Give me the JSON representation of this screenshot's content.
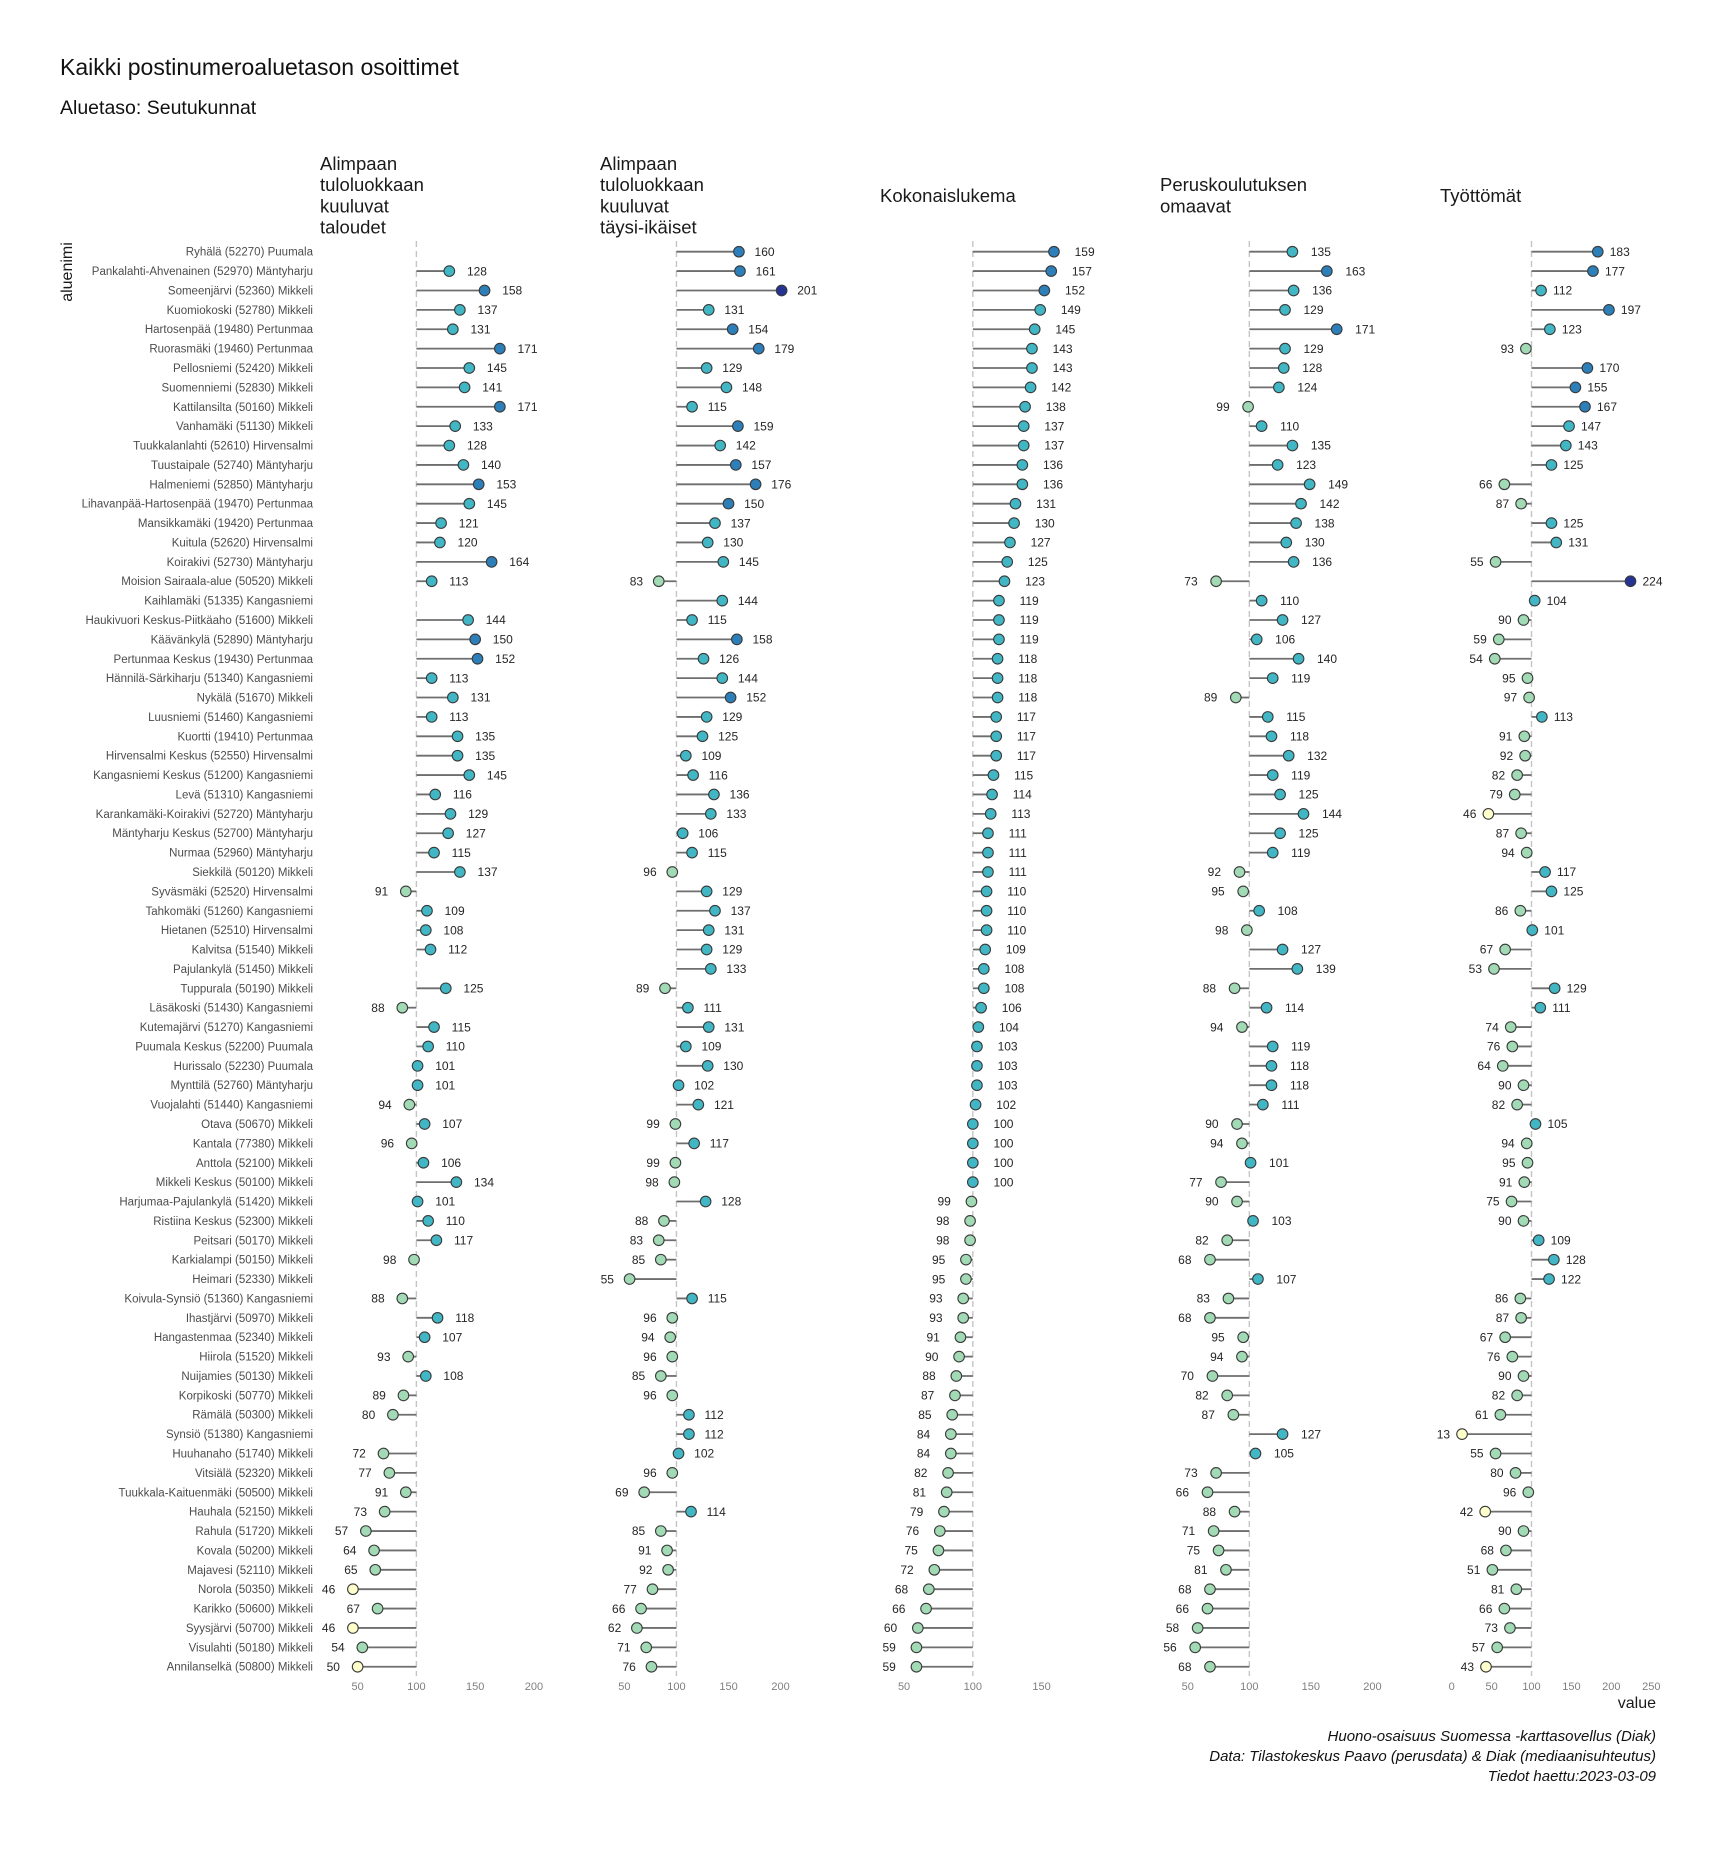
{
  "chart_data": {
    "type": "scatter",
    "title": "Kaikki postinumeroaluetason osoittimet",
    "subtitle": "Aluetaso: Seutukunnat",
    "xlabel": "value",
    "ylabel": "aluenimi",
    "reference_value": 100,
    "caption": [
      "Huono-osaisuus Suomessa -karttasovellus (Diak)",
      "Data: Tilastokeskus Paavo (perusdata) & Diak (mediaanisuhteutus)",
      "Tiedot haettu:2023-03-09"
    ],
    "color_scale": {
      "breaks": [
        50,
        100,
        150,
        200
      ],
      "colors": [
        "#ffffcc",
        "#a1dab4",
        "#41b6c4",
        "#2c7fb8",
        "#253494"
      ]
    },
    "categories": [
      "Ryhälä (52270) Puumala",
      "Pankalahti-Ahvenainen (52970) Mäntyharju",
      "Someenjärvi (52360) Mikkeli",
      "Kuomiokoski (52780) Mikkeli",
      "Hartosenpää (19480) Pertunmaa",
      "Ruorasmäki (19460) Pertunmaa",
      "Pellosniemi (52420) Mikkeli",
      "Suomenniemi (52830) Mikkeli",
      "Kattilansilta (50160) Mikkeli",
      "Vanhamäki (51130) Mikkeli",
      "Tuukkalanlahti (52610) Hirvensalmi",
      "Tuustaipale (52740) Mäntyharju",
      "Halmeniemi (52850) Mäntyharju",
      "Lihavanpää-Hartosenpää (19470) Pertunmaa",
      "Mansikkamäki (19420) Pertunmaa",
      "Kuitula (52620) Hirvensalmi",
      "Koirakivi (52730) Mäntyharju",
      "Moision Sairaala-alue (50520) Mikkeli",
      "Kaihlamäki (51335) Kangasniemi",
      "Haukivuori Keskus-Piitkäaho (51600) Mikkeli",
      "Käävänkylä (52890) Mäntyharju",
      "Pertunmaa Keskus (19430) Pertunmaa",
      "Hännilä-Särkiharju (51340) Kangasniemi",
      "Nykälä (51670) Mikkeli",
      "Luusniemi (51460) Kangasniemi",
      "Kuortti (19410) Pertunmaa",
      "Hirvensalmi Keskus (52550) Hirvensalmi",
      "Kangasniemi Keskus (51200) Kangasniemi",
      "Levä (51310) Kangasniemi",
      "Karankamäki-Koirakivi (52720) Mäntyharju",
      "Mäntyharju Keskus (52700) Mäntyharju",
      "Nurmaa (52960) Mäntyharju",
      "Siekkilä (50120) Mikkeli",
      "Syväsmäki (52520) Hirvensalmi",
      "Tahkomäki (51260) Kangasniemi",
      "Hietanen (52510) Hirvensalmi",
      "Kalvitsa (51540) Mikkeli",
      "Pajulankylä (51450) Mikkeli",
      "Tuppurala (50190) Mikkeli",
      "Läsäkoski (51430) Kangasniemi",
      "Kutemajärvi (51270) Kangasniemi",
      "Puumala Keskus (52200) Puumala",
      "Hurissalo (52230) Puumala",
      "Mynttilä (52760) Mäntyharju",
      "Vuojalahti (51440) Kangasniemi",
      "Otava (50670) Mikkeli",
      "Kantala (77380) Mikkeli",
      "Anttola (52100) Mikkeli",
      "Mikkeli Keskus (50100) Mikkeli",
      "Harjumaa-Pajulankylä (51420) Mikkeli",
      "Ristiina Keskus (52300) Mikkeli",
      "Peitsari (50170) Mikkeli",
      "Karkialampi (50150) Mikkeli",
      "Heimari (52330) Mikkeli",
      "Koivula-Synsiö (51360) Kangasniemi",
      "Ihastjärvi (50970) Mikkeli",
      "Hangastenmaa (52340) Mikkeli",
      "Hiirola (51520) Mikkeli",
      "Nuijamies (50130) Mikkeli",
      "Korpikoski (50770) Mikkeli",
      "Rämälä (50300) Mikkeli",
      "Synsiö (51380) Kangasniemi",
      "Huuhanaho (51740) Mikkeli",
      "Vitsiälä (52320) Mikkeli",
      "Tuukkala-Kaituenmäki (50500) Mikkeli",
      "Hauhala (52150) Mikkeli",
      "Rahula (51720) Mikkeli",
      "Kovala (50200) Mikkeli",
      "Majavesi (52110) Mikkeli",
      "Norola (50350) Mikkeli",
      "Karikko (50600) Mikkeli",
      "Syysjärvi (50700) Mikkeli",
      "Visulahti (50180) Mikkeli",
      "Annilanselkä (50800) Mikkeli"
    ],
    "panels": [
      {
        "title_lines": [
          "Alimpaan",
          "tuloluokkaan",
          "kuuluvat",
          "taloudet"
        ],
        "xlim": [
          18,
          206
        ],
        "ticks": [
          50,
          100,
          150,
          200
        ],
        "values": [
          null,
          128,
          158,
          137,
          131,
          171,
          145,
          141,
          171,
          133,
          128,
          140,
          153,
          145,
          121,
          120,
          164,
          113,
          null,
          144,
          150,
          152,
          113,
          131,
          113,
          135,
          135,
          145,
          116,
          129,
          127,
          115,
          137,
          91,
          109,
          108,
          112,
          null,
          125,
          88,
          115,
          110,
          101,
          101,
          94,
          107,
          96,
          106,
          134,
          101,
          110,
          117,
          98,
          null,
          88,
          118,
          107,
          93,
          108,
          89,
          80,
          null,
          72,
          77,
          91,
          73,
          57,
          64,
          65,
          46,
          67,
          46,
          54,
          50
        ]
      },
      {
        "title_lines": [
          "Alimpaan",
          "tuloluokkaan",
          "kuuluvat",
          "täysi-ikäiset"
        ],
        "xlim": [
          26.6,
          238.8
        ],
        "ticks": [
          50,
          100,
          150,
          200
        ],
        "values": [
          160,
          161,
          201,
          131,
          154,
          179,
          129,
          148,
          115,
          159,
          142,
          157,
          176,
          150,
          137,
          130,
          145,
          83,
          144,
          115,
          158,
          126,
          144,
          152,
          129,
          125,
          109,
          116,
          136,
          133,
          106,
          115,
          96,
          129,
          137,
          131,
          129,
          133,
          89,
          111,
          131,
          109,
          130,
          102,
          121,
          99,
          117,
          99,
          98,
          128,
          88,
          83,
          85,
          55,
          115,
          96,
          94,
          96,
          85,
          96,
          112,
          112,
          102,
          96,
          69,
          114,
          85,
          91,
          92,
          77,
          66,
          62,
          71,
          76
        ]
      },
      {
        "title_lines": [
          "Kokonaislukema"
        ],
        "xlim": [
          32.5,
          193.2
        ],
        "ticks": [
          50,
          100,
          150
        ],
        "values": [
          159,
          157,
          152,
          149,
          145,
          143,
          143,
          142,
          138,
          137,
          137,
          136,
          136,
          131,
          130,
          127,
          125,
          123,
          119,
          119,
          119,
          118,
          118,
          118,
          117,
          117,
          117,
          115,
          114,
          113,
          111,
          111,
          111,
          110,
          110,
          110,
          109,
          108,
          108,
          106,
          104,
          103,
          103,
          103,
          102,
          100,
          100,
          100,
          100,
          99,
          98,
          98,
          95,
          95,
          93,
          93,
          91,
          90,
          88,
          87,
          85,
          84,
          84,
          82,
          81,
          79,
          76,
          75,
          72,
          68,
          66,
          60,
          59,
          59
        ]
      },
      {
        "title_lines": [
          "Peruskoulutuksen",
          "omaavat"
        ],
        "xlim": [
          27.4,
          207
        ],
        "ticks": [
          50,
          100,
          150,
          200
        ],
        "values": [
          135,
          163,
          136,
          129,
          171,
          129,
          128,
          124,
          99,
          110,
          135,
          123,
          149,
          142,
          138,
          130,
          136,
          73,
          110,
          127,
          106,
          140,
          119,
          89,
          115,
          118,
          132,
          119,
          125,
          144,
          125,
          119,
          92,
          95,
          108,
          98,
          127,
          139,
          88,
          114,
          94,
          119,
          118,
          118,
          111,
          90,
          94,
          101,
          77,
          90,
          103,
          82,
          68,
          107,
          83,
          68,
          95,
          94,
          70,
          82,
          87,
          127,
          105,
          73,
          66,
          88,
          71,
          75,
          81,
          68,
          66,
          58,
          56,
          68
        ]
      },
      {
        "title_lines": [
          "Työttömät"
        ],
        "xlim": [
          -14.6,
          262.2
        ],
        "ticks": [
          0,
          50,
          100,
          150,
          200,
          250
        ],
        "values": [
          183,
          177,
          112,
          197,
          123,
          93,
          170,
          155,
          167,
          147,
          143,
          125,
          66,
          87,
          125,
          131,
          55,
          224,
          104,
          90,
          59,
          54,
          95,
          97,
          113,
          91,
          92,
          82,
          79,
          46,
          87,
          94,
          117,
          125,
          86,
          101,
          67,
          53,
          129,
          111,
          74,
          76,
          64,
          90,
          82,
          105,
          94,
          95,
          91,
          75,
          90,
          109,
          128,
          122,
          86,
          87,
          67,
          76,
          90,
          82,
          61,
          13,
          55,
          80,
          96,
          42,
          90,
          68,
          51,
          81,
          66,
          73,
          57,
          43
        ]
      }
    ]
  }
}
